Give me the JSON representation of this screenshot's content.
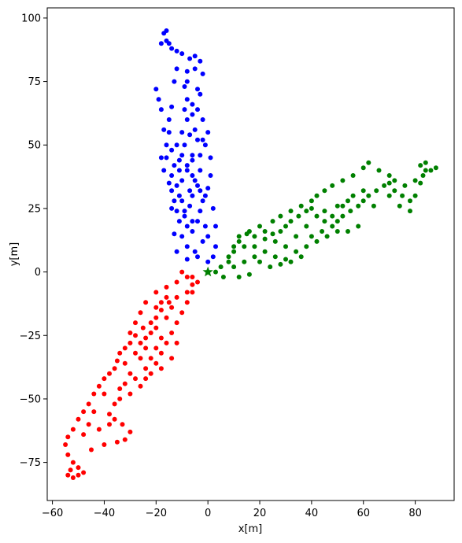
{
  "chart_data": {
    "type": "scatter",
    "xlabel": "x[m]",
    "ylabel": "y[m]",
    "xlim": [
      -62,
      95
    ],
    "ylim": [
      -90,
      104
    ],
    "xticks": [
      -60,
      -40,
      -20,
      0,
      20,
      40,
      60,
      80
    ],
    "yticks": [
      -75,
      -50,
      -25,
      0,
      25,
      50,
      75,
      100
    ],
    "grid": false,
    "origin_marker": {
      "x": 0,
      "y": 0,
      "color": "#008000",
      "shape": "star"
    },
    "series": [
      {
        "color": "#0000ff",
        "points": [
          [
            -18,
            90
          ],
          [
            -16,
            91
          ],
          [
            -17,
            94
          ],
          [
            -16,
            95
          ],
          [
            -15,
            90
          ],
          [
            -14,
            88
          ],
          [
            -12,
            87
          ],
          [
            -10,
            86
          ],
          [
            -5,
            85
          ],
          [
            -3,
            83
          ],
          [
            -2,
            78
          ],
          [
            -3,
            70
          ],
          [
            -2,
            60
          ],
          [
            -1,
            50
          ],
          [
            1,
            45
          ],
          [
            -3,
            40
          ],
          [
            -1,
            30
          ],
          [
            2,
            25
          ],
          [
            3,
            18
          ],
          [
            -2,
            12
          ],
          [
            -5,
            8
          ],
          [
            -8,
            5
          ],
          [
            -12,
            8
          ],
          [
            -13,
            15
          ],
          [
            -14,
            25
          ],
          [
            -15,
            35
          ],
          [
            -16,
            45
          ],
          [
            -15,
            55
          ],
          [
            -14,
            65
          ],
          [
            -13,
            75
          ],
          [
            -12,
            80
          ],
          [
            -20,
            72
          ],
          [
            -19,
            68
          ],
          [
            -18,
            64
          ],
          [
            -17,
            56
          ],
          [
            -16,
            50
          ],
          [
            -18,
            45
          ],
          [
            -17,
            40
          ],
          [
            -14,
            38
          ],
          [
            -12,
            34
          ],
          [
            -11,
            30
          ],
          [
            -10,
            28
          ],
          [
            -9,
            22
          ],
          [
            -8,
            18
          ],
          [
            -6,
            16
          ],
          [
            -4,
            20
          ],
          [
            -3,
            24
          ],
          [
            -2,
            28
          ],
          [
            -4,
            34
          ],
          [
            -6,
            38
          ],
          [
            -8,
            42
          ],
          [
            -10,
            46
          ],
          [
            -9,
            50
          ],
          [
            -7,
            54
          ],
          [
            -5,
            56
          ],
          [
            -4,
            52
          ],
          [
            -3,
            46
          ],
          [
            -6,
            30
          ],
          [
            -7,
            26
          ],
          [
            -9,
            24
          ],
          [
            -12,
            24
          ],
          [
            -13,
            28
          ],
          [
            -14,
            32
          ],
          [
            -10,
            36
          ],
          [
            -8,
            40
          ],
          [
            -6,
            44
          ],
          [
            -10,
            55
          ],
          [
            -8,
            60
          ],
          [
            -6,
            62
          ],
          [
            -4,
            64
          ],
          [
            -6,
            66
          ],
          [
            -8,
            68
          ],
          [
            -9,
            73
          ],
          [
            -8,
            79
          ],
          [
            -7,
            84
          ],
          [
            0,
            55
          ],
          [
            -2,
            52
          ],
          [
            -14,
            48
          ],
          [
            -13,
            42
          ],
          [
            -11,
            44
          ],
          [
            -5,
            36
          ],
          [
            -3,
            32
          ],
          [
            0,
            33
          ],
          [
            1,
            38
          ],
          [
            -7,
            32
          ],
          [
            -11,
            20
          ],
          [
            -10,
            14
          ],
          [
            -8,
            10
          ],
          [
            -4,
            6
          ],
          [
            0,
            4
          ],
          [
            2,
            6
          ],
          [
            3,
            10
          ],
          [
            0,
            14
          ],
          [
            -1,
            18
          ],
          [
            -6,
            20
          ],
          [
            -9,
            64
          ],
          [
            -8,
            75
          ],
          [
            -5,
            80
          ],
          [
            -4,
            72
          ],
          [
            -6,
            46
          ],
          [
            -12,
            50
          ],
          [
            -15,
            60
          ],
          [
            -11,
            40
          ]
        ]
      },
      {
        "color": "#008000",
        "points": [
          [
            3,
            0
          ],
          [
            5,
            2
          ],
          [
            8,
            4
          ],
          [
            10,
            8
          ],
          [
            12,
            12
          ],
          [
            15,
            15
          ],
          [
            18,
            14
          ],
          [
            22,
            13
          ],
          [
            25,
            15
          ],
          [
            28,
            16
          ],
          [
            30,
            18
          ],
          [
            32,
            20
          ],
          [
            35,
            22
          ],
          [
            38,
            24
          ],
          [
            40,
            25
          ],
          [
            42,
            22
          ],
          [
            45,
            20
          ],
          [
            48,
            18
          ],
          [
            50,
            20
          ],
          [
            52,
            22
          ],
          [
            55,
            24
          ],
          [
            58,
            26
          ],
          [
            60,
            28
          ],
          [
            62,
            30
          ],
          [
            65,
            32
          ],
          [
            68,
            34
          ],
          [
            70,
            35
          ],
          [
            72,
            32
          ],
          [
            75,
            30
          ],
          [
            78,
            28
          ],
          [
            80,
            30
          ],
          [
            82,
            35
          ],
          [
            83,
            38
          ],
          [
            84,
            40
          ],
          [
            86,
            40
          ],
          [
            88,
            41
          ],
          [
            84,
            43
          ],
          [
            82,
            42
          ],
          [
            80,
            36
          ],
          [
            76,
            34
          ],
          [
            72,
            36
          ],
          [
            70,
            38
          ],
          [
            66,
            40
          ],
          [
            62,
            43
          ],
          [
            60,
            41
          ],
          [
            56,
            38
          ],
          [
            52,
            36
          ],
          [
            48,
            34
          ],
          [
            45,
            32
          ],
          [
            42,
            30
          ],
          [
            40,
            28
          ],
          [
            36,
            26
          ],
          [
            32,
            24
          ],
          [
            28,
            22
          ],
          [
            25,
            20
          ],
          [
            20,
            18
          ],
          [
            16,
            16
          ],
          [
            12,
            14
          ],
          [
            10,
            10
          ],
          [
            8,
            6
          ],
          [
            14,
            10
          ],
          [
            18,
            10
          ],
          [
            22,
            8
          ],
          [
            26,
            6
          ],
          [
            30,
            5
          ],
          [
            34,
            8
          ],
          [
            38,
            10
          ],
          [
            42,
            12
          ],
          [
            46,
            14
          ],
          [
            50,
            16
          ],
          [
            54,
            16
          ],
          [
            58,
            18
          ],
          [
            20,
            4
          ],
          [
            24,
            2
          ],
          [
            28,
            3
          ],
          [
            32,
            4
          ],
          [
            36,
            6
          ],
          [
            40,
            14
          ],
          [
            44,
            16
          ],
          [
            48,
            22
          ],
          [
            52,
            26
          ],
          [
            56,
            30
          ],
          [
            60,
            32
          ],
          [
            30,
            10
          ],
          [
            34,
            14
          ],
          [
            38,
            18
          ],
          [
            26,
            12
          ],
          [
            22,
            16
          ],
          [
            18,
            6
          ],
          [
            14,
            4
          ],
          [
            10,
            2
          ],
          [
            6,
            -2
          ],
          [
            12,
            -2
          ],
          [
            16,
            -1
          ],
          [
            45,
            24
          ],
          [
            50,
            26
          ],
          [
            54,
            28
          ],
          [
            64,
            26
          ],
          [
            70,
            30
          ],
          [
            74,
            26
          ],
          [
            78,
            24
          ]
        ]
      },
      {
        "color": "#ff0000",
        "points": [
          [
            -10,
            0
          ],
          [
            -8,
            -2
          ],
          [
            -6,
            -5
          ],
          [
            -8,
            -8
          ],
          [
            -12,
            -10
          ],
          [
            -15,
            -12
          ],
          [
            -18,
            -15
          ],
          [
            -20,
            -18
          ],
          [
            -22,
            -20
          ],
          [
            -25,
            -22
          ],
          [
            -28,
            -25
          ],
          [
            -30,
            -28
          ],
          [
            -32,
            -30
          ],
          [
            -34,
            -32
          ],
          [
            -35,
            -35
          ],
          [
            -36,
            -38
          ],
          [
            -38,
            -40
          ],
          [
            -40,
            -42
          ],
          [
            -42,
            -45
          ],
          [
            -44,
            -48
          ],
          [
            -46,
            -52
          ],
          [
            -48,
            -55
          ],
          [
            -50,
            -58
          ],
          [
            -52,
            -62
          ],
          [
            -54,
            -65
          ],
          [
            -55,
            -68
          ],
          [
            -54,
            -72
          ],
          [
            -52,
            -75
          ],
          [
            -53,
            -78
          ],
          [
            -54,
            -80
          ],
          [
            -52,
            -81
          ],
          [
            -50,
            -80
          ],
          [
            -48,
            -79
          ],
          [
            -50,
            -77
          ],
          [
            -45,
            -70
          ],
          [
            -40,
            -68
          ],
          [
            -35,
            -67
          ],
          [
            -32,
            -66
          ],
          [
            -30,
            -63
          ],
          [
            -33,
            -60
          ],
          [
            -36,
            -58
          ],
          [
            -38,
            -56
          ],
          [
            -36,
            -52
          ],
          [
            -34,
            -50
          ],
          [
            -30,
            -48
          ],
          [
            -26,
            -45
          ],
          [
            -24,
            -42
          ],
          [
            -22,
            -40
          ],
          [
            -20,
            -36
          ],
          [
            -18,
            -32
          ],
          [
            -16,
            -28
          ],
          [
            -14,
            -24
          ],
          [
            -12,
            -20
          ],
          [
            -10,
            -16
          ],
          [
            -8,
            -12
          ],
          [
            -6,
            -8
          ],
          [
            -4,
            -4
          ],
          [
            -6,
            -2
          ],
          [
            -12,
            -4
          ],
          [
            -16,
            -6
          ],
          [
            -20,
            -8
          ],
          [
            -24,
            -12
          ],
          [
            -26,
            -16
          ],
          [
            -28,
            -20
          ],
          [
            -30,
            -24
          ],
          [
            -32,
            -36
          ],
          [
            -30,
            -40
          ],
          [
            -28,
            -42
          ],
          [
            -24,
            -38
          ],
          [
            -22,
            -34
          ],
          [
            -20,
            -30
          ],
          [
            -18,
            -26
          ],
          [
            -22,
            -24
          ],
          [
            -26,
            -28
          ],
          [
            -28,
            -32
          ],
          [
            -24,
            -30
          ],
          [
            -20,
            -22
          ],
          [
            -16,
            -18
          ],
          [
            -14,
            -14
          ],
          [
            -16,
            -10
          ],
          [
            -12,
            -28
          ],
          [
            -14,
            -34
          ],
          [
            -18,
            -38
          ],
          [
            -40,
            -48
          ],
          [
            -44,
            -55
          ],
          [
            -46,
            -60
          ],
          [
            -48,
            -64
          ],
          [
            -42,
            -62
          ],
          [
            -38,
            -60
          ],
          [
            -34,
            -46
          ],
          [
            -32,
            -44
          ],
          [
            -26,
            -34
          ],
          [
            -24,
            -26
          ],
          [
            -20,
            -14
          ],
          [
            -18,
            -12
          ]
        ]
      }
    ]
  }
}
